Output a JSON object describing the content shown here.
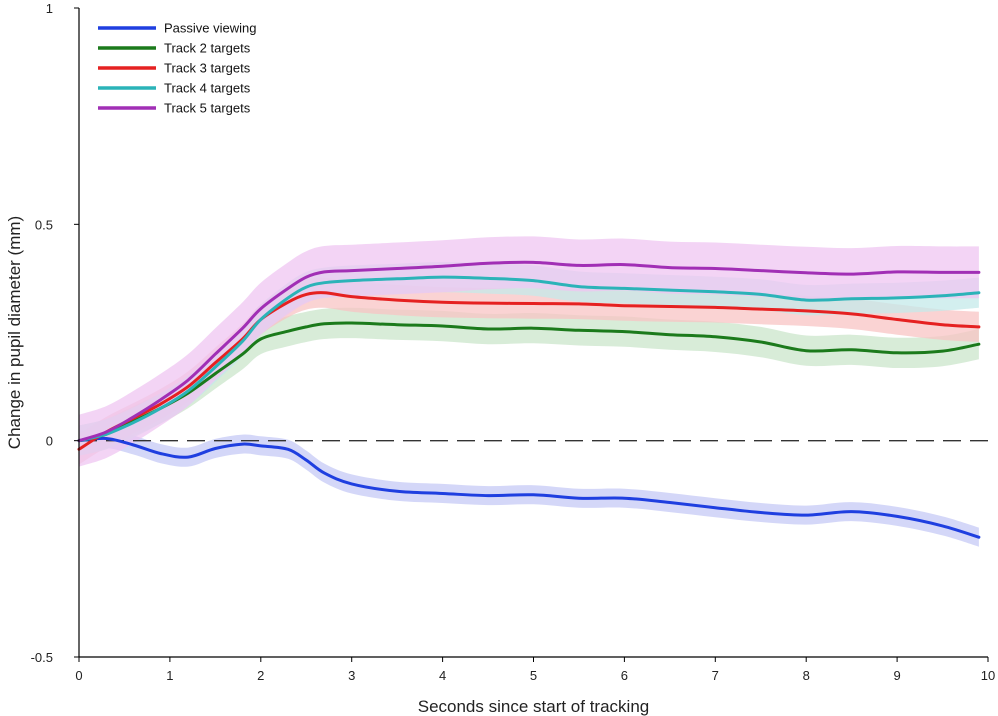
{
  "chart_data": {
    "type": "line",
    "xlabel": "Seconds since start of tracking",
    "ylabel": "Change in pupil diameter (mm)",
    "xlim": [
      0,
      10
    ],
    "ylim": [
      -0.5,
      1
    ],
    "x_ticks": [
      "0",
      "1",
      "2",
      "3",
      "4",
      "5",
      "6",
      "7",
      "8",
      "9",
      "10"
    ],
    "y_ticks": [
      "-0.5",
      "0",
      "0.5",
      "1"
    ],
    "reference_line": 0,
    "legend_position": "top-left",
    "x": [
      0,
      0.3,
      0.6,
      0.9,
      1.2,
      1.5,
      1.8,
      2.0,
      2.3,
      2.5,
      2.7,
      3.0,
      3.5,
      4.0,
      4.5,
      5.0,
      5.5,
      6.0,
      6.5,
      7.0,
      7.5,
      8.0,
      8.5,
      9.0,
      9.5,
      9.9
    ],
    "series": [
      {
        "name": "Passive viewing",
        "color": "#1f3fe0",
        "band": "#c5c9f5",
        "band_width": 0.022,
        "values": [
          0.0,
          0.005,
          -0.01,
          -0.03,
          -0.038,
          -0.018,
          -0.008,
          -0.012,
          -0.02,
          -0.045,
          -0.075,
          -0.1,
          -0.117,
          -0.122,
          -0.127,
          -0.125,
          -0.133,
          -0.133,
          -0.143,
          -0.155,
          -0.166,
          -0.172,
          -0.164,
          -0.175,
          -0.197,
          -0.223
        ]
      },
      {
        "name": "Track 2 targets",
        "color": "#1b7a1b",
        "band": "#cbe6cb",
        "band_width": 0.035,
        "values": [
          0.0,
          0.015,
          0.045,
          0.075,
          0.11,
          0.155,
          0.2,
          0.235,
          0.253,
          0.263,
          0.27,
          0.272,
          0.268,
          0.265,
          0.258,
          0.26,
          0.255,
          0.252,
          0.245,
          0.24,
          0.228,
          0.208,
          0.21,
          0.203,
          0.207,
          0.223
        ]
      },
      {
        "name": "Track 3 targets",
        "color": "#e52121",
        "band": "#f8c4c4",
        "band_width": 0.035,
        "values": [
          -0.02,
          0.02,
          0.052,
          0.085,
          0.125,
          0.18,
          0.235,
          0.28,
          0.32,
          0.338,
          0.342,
          0.333,
          0.325,
          0.32,
          0.318,
          0.317,
          0.316,
          0.312,
          0.31,
          0.308,
          0.304,
          0.3,
          0.293,
          0.28,
          0.268,
          0.263
        ]
      },
      {
        "name": "Track 4 targets",
        "color": "#2bb3b8",
        "band": "#c4e9ea",
        "band_width": 0.035,
        "values": [
          0.0,
          0.015,
          0.042,
          0.075,
          0.115,
          0.17,
          0.23,
          0.28,
          0.33,
          0.355,
          0.365,
          0.37,
          0.374,
          0.378,
          0.375,
          0.37,
          0.356,
          0.352,
          0.348,
          0.344,
          0.338,
          0.325,
          0.328,
          0.33,
          0.335,
          0.342
        ]
      },
      {
        "name": "Track 5 targets",
        "color": "#a12fb5",
        "band": "#efc6f1",
        "band_width": 0.06,
        "values": [
          0.0,
          0.02,
          0.055,
          0.095,
          0.14,
          0.2,
          0.26,
          0.305,
          0.352,
          0.378,
          0.39,
          0.393,
          0.398,
          0.403,
          0.41,
          0.412,
          0.405,
          0.407,
          0.4,
          0.398,
          0.393,
          0.388,
          0.385,
          0.39,
          0.389,
          0.389
        ]
      }
    ]
  }
}
